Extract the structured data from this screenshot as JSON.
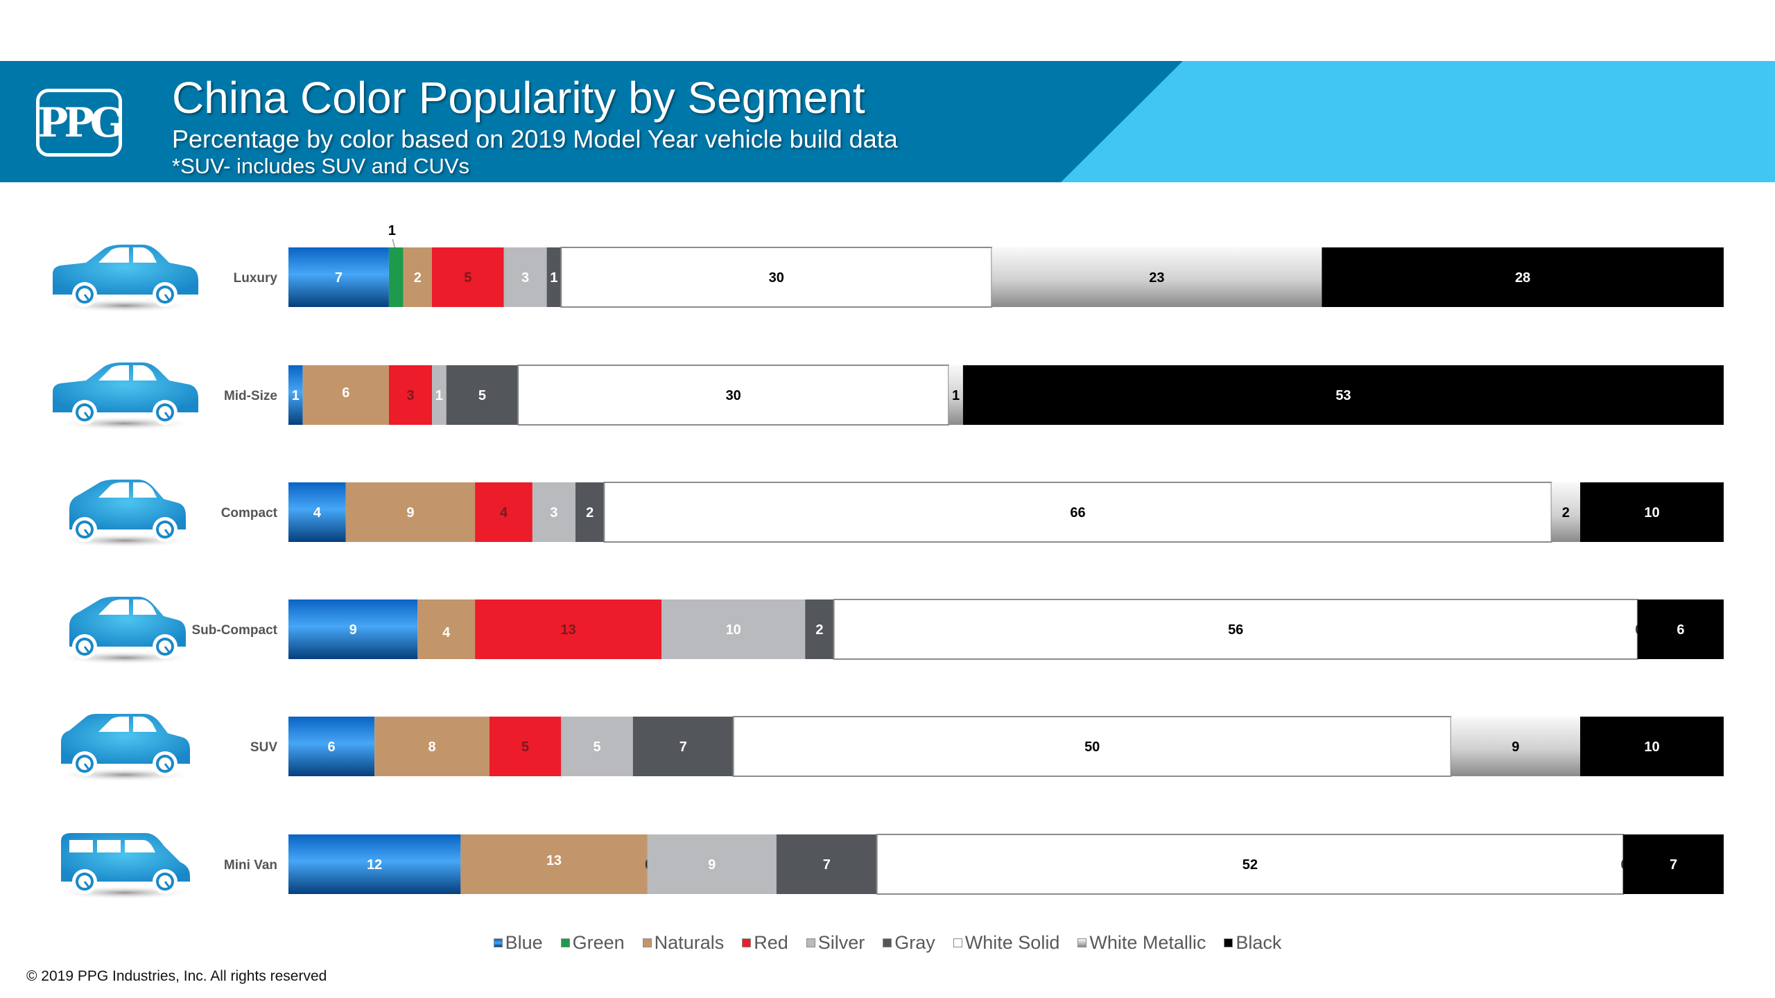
{
  "header": {
    "logo_text": "PPG",
    "title": "China Color Popularity by Segment",
    "subtitle": "Percentage by color based on 2019 Model Year vehicle build data",
    "note": "*SUV- includes SUV and CUVs"
  },
  "chart_data": {
    "type": "bar",
    "orientation": "horizontal-stacked-100",
    "title": "China Color Popularity by Segment",
    "subtitle": "Percentage by color based on 2019 Model Year vehicle build data",
    "xlabel": "",
    "ylabel": "",
    "xlim": [
      0,
      100
    ],
    "grid": false,
    "legend_position": "bottom",
    "categories": [
      "Luxury",
      "Mid-Size",
      "Compact",
      "Sub-Compact",
      "SUV",
      "Mini Van"
    ],
    "category_icons": [
      "sedan-car-icon",
      "midsize-car-icon",
      "hatchback-car-icon",
      "subcompact-car-icon",
      "suv-car-icon",
      "minivan-icon"
    ],
    "series": [
      {
        "name": "Blue",
        "color": "#1f7ad6",
        "label_color": "#ffffff",
        "values": [
          7,
          1,
          4,
          9,
          6,
          12
        ]
      },
      {
        "name": "Green",
        "color": "#1e9a4c",
        "label_color": "#000000",
        "values": [
          1,
          0,
          0,
          0,
          0,
          0
        ]
      },
      {
        "name": "Naturals",
        "color": "#c2966a",
        "label_color": "#ffffff",
        "values": [
          2,
          6,
          9,
          4,
          8,
          13
        ]
      },
      {
        "name": "Red",
        "color": "#ec1c2a",
        "label_color": "#7a1a1f",
        "values": [
          5,
          3,
          4,
          13,
          5,
          0
        ]
      },
      {
        "name": "Silver",
        "color": "#b8babd",
        "label_color": "#ffffff",
        "values": [
          3,
          1,
          3,
          10,
          5,
          9
        ]
      },
      {
        "name": "Gray",
        "color": "#53575c",
        "label_color": "#ffffff",
        "values": [
          1,
          5,
          2,
          2,
          7,
          7
        ]
      },
      {
        "name": "White Solid",
        "color": "#ffffff",
        "label_color": "#000000",
        "values": [
          30,
          30,
          66,
          56,
          50,
          52
        ]
      },
      {
        "name": "White Metallic",
        "color": "#d4d4d4",
        "label_color": "#000000",
        "values": [
          23,
          1,
          2,
          0,
          9,
          0
        ]
      },
      {
        "name": "Black",
        "color": "#000000",
        "label_color": "#ffffff",
        "values": [
          28,
          53,
          10,
          6,
          10,
          7
        ]
      }
    ],
    "annotations": [
      {
        "category": "Luxury",
        "series": "Green",
        "text": "1",
        "placement": "above-with-leader"
      }
    ]
  },
  "footer": {
    "copyright": "© 2019 PPG Industries, Inc. All rights reserved"
  }
}
